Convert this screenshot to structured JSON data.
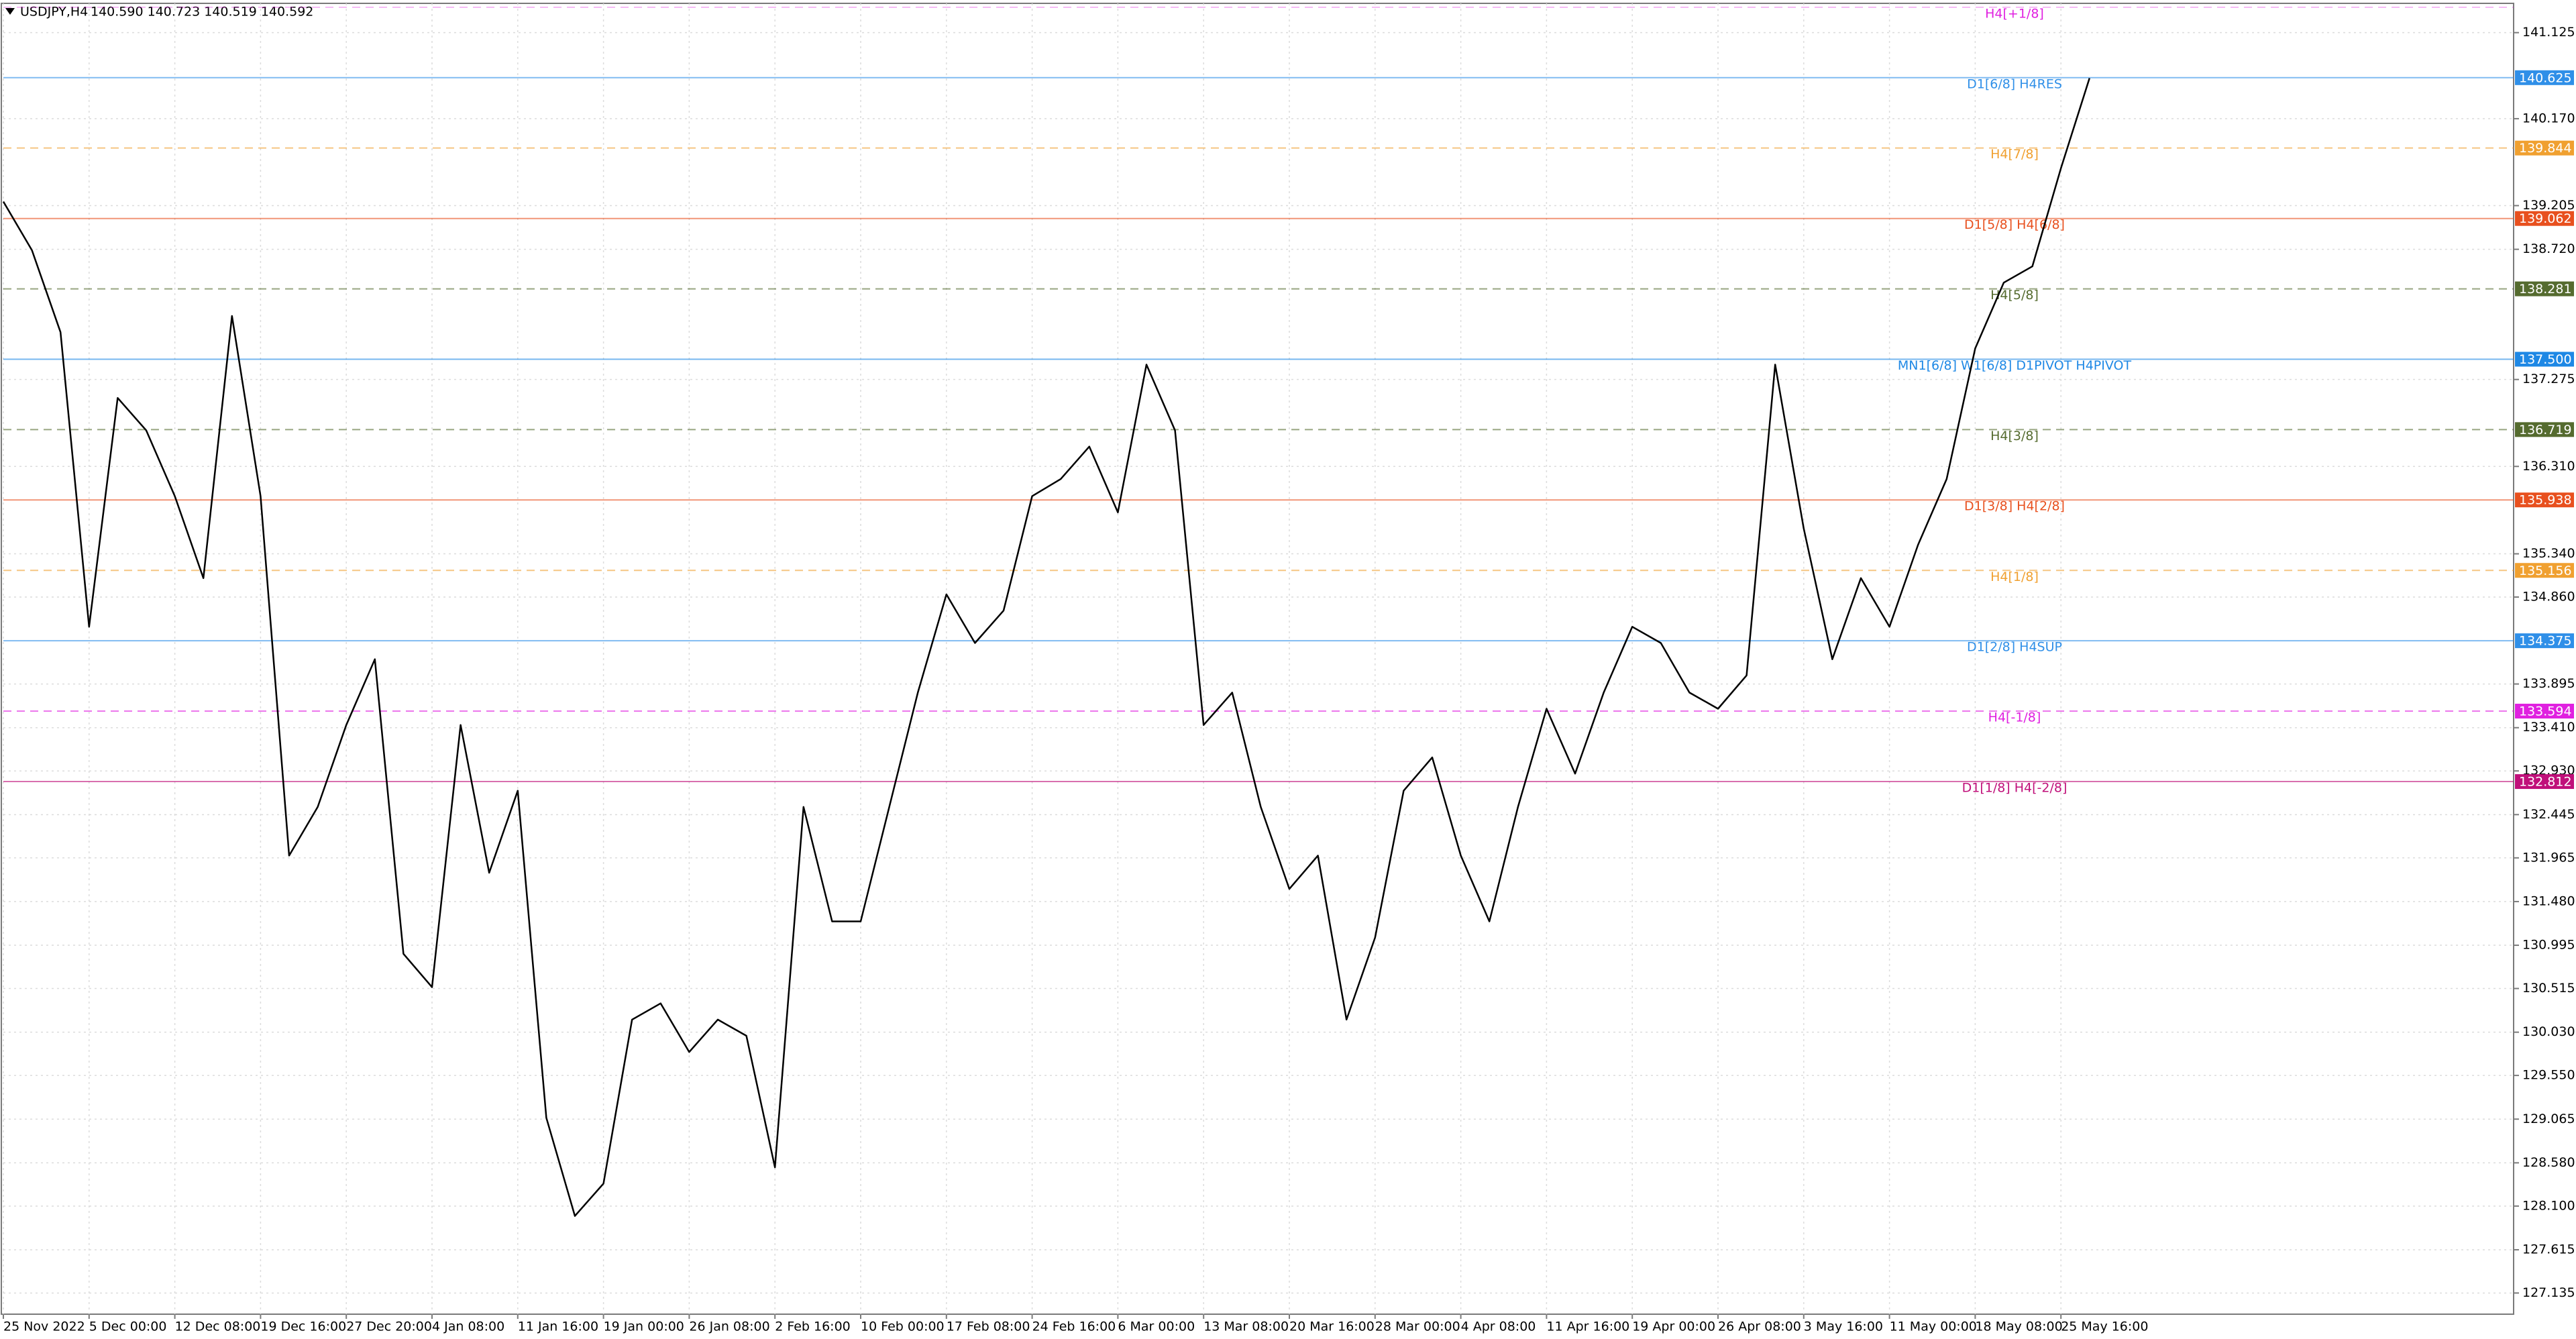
{
  "chart_data": {
    "type": "line",
    "title": "USDJPY,H4",
    "ohlc": "140.590 140.723 140.519 140.592",
    "color": "#000000",
    "grid": true,
    "ylim": [
      126.9,
      141.45
    ],
    "yticks": [
      141.125,
      {
        "value": 140.17,
        "label": "140.170"
      },
      139.205,
      {
        "value": 138.72,
        "label": "138.720"
      },
      137.275,
      {
        "value": 136.31,
        "label": "136.310"
      },
      {
        "value": 135.34,
        "label": "135.340"
      },
      {
        "value": 134.86,
        "label": "134.860"
      },
      133.895,
      {
        "value": 133.41,
        "label": "133.410"
      },
      {
        "value": 132.93,
        "label": "132.930"
      },
      132.445,
      131.965,
      {
        "value": 131.48,
        "label": "131.480"
      },
      130.995,
      130.515,
      {
        "value": 130.03,
        "label": "130.030"
      },
      {
        "value": 129.55,
        "label": "129.550"
      },
      129.065,
      {
        "value": 128.58,
        "label": "128.580"
      },
      {
        "value": 128.1,
        "label": "128.100"
      },
      127.615,
      127.135
    ],
    "categories": [
      "25 Nov 2022",
      null,
      null,
      "5 Dec 00:00",
      null,
      null,
      "12 Dec 08:00",
      null,
      null,
      "19 Dec 16:00",
      null,
      null,
      "27 Dec 20:00",
      null,
      null,
      "4 Jan 08:00",
      null,
      null,
      "11 Jan 16:00",
      null,
      null,
      "19 Jan 00:00",
      null,
      null,
      "26 Jan 08:00",
      null,
      null,
      "2 Feb 16:00",
      null,
      null,
      "10 Feb 00:00",
      null,
      null,
      "17 Feb 08:00",
      null,
      null,
      "24 Feb 16:00",
      null,
      null,
      "6 Mar 00:00",
      null,
      null,
      "13 Mar 08:00",
      null,
      null,
      "20 Mar 16:00",
      null,
      null,
      "28 Mar 00:00",
      null,
      null,
      "4 Apr 08:00",
      null,
      null,
      "11 Apr 16:00",
      null,
      null,
      "19 Apr 00:00",
      null,
      null,
      "26 Apr 08:00",
      null,
      null,
      "3 May 16:00",
      null,
      null,
      "11 May 00:00",
      null,
      null,
      "18 May 08:00",
      null,
      null,
      "25 May 16:00",
      null
    ],
    "values": [
      139.25,
      138.71,
      137.8,
      134.53,
      137.07,
      136.71,
      135.98,
      135.07,
      137.98,
      135.98,
      131.99,
      132.53,
      133.44,
      134.17,
      130.9,
      130.53,
      133.44,
      131.8,
      132.71,
      129.08,
      127.99,
      128.35,
      130.17,
      130.35,
      129.81,
      130.17,
      129.99,
      128.53,
      132.53,
      131.26,
      131.26,
      132.53,
      133.8,
      134.89,
      134.35,
      134.71,
      135.98,
      136.17,
      136.53,
      135.8,
      137.44,
      136.71,
      133.44,
      133.8,
      132.53,
      131.62,
      131.99,
      130.17,
      131.08,
      132.71,
      133.08,
      131.99,
      131.26,
      132.53,
      133.62,
      132.9,
      133.8,
      134.53,
      134.35,
      133.8,
      133.62,
      133.99,
      137.44,
      135.62,
      134.17,
      135.07,
      134.53,
      135.44,
      136.17,
      137.62,
      138.35,
      138.53,
      139.62,
      140.62
    ],
    "levels": [
      {
        "label": "H4[+1/8]",
        "value": 141.406,
        "color": "#e020e0",
        "dashed": true
      },
      {
        "label": "D1[6/8] H4RES",
        "value": 140.625,
        "value_label": "140.625",
        "color": "#2f8fe8",
        "dashed": false
      },
      {
        "label": "H4[7/8]",
        "value": 139.844,
        "value_label": "139.844",
        "color": "#f0a030",
        "dashed": true
      },
      {
        "label": "D1[5/8] H4[6/8]",
        "value": 139.062,
        "value_label": "139.062",
        "color": "#e8501e",
        "dashed": false
      },
      {
        "label": "H4[5/8]",
        "value": 138.281,
        "value_label": "138.281",
        "color": "#556b2f",
        "dashed": true
      },
      {
        "label": "MN1[6/8] W1[6/8] D1PIVOT H4PIVOT",
        "value": 137.5,
        "value_label": "137.500",
        "color": "#1e88e5",
        "dashed": false
      },
      {
        "label": "H4[3/8]",
        "value": 136.719,
        "value_label": "136.719",
        "color": "#556b2f",
        "dashed": true
      },
      {
        "label": "D1[3/8] H4[2/8]",
        "value": 135.938,
        "value_label": "135.938",
        "color": "#e8501e",
        "dashed": false
      },
      {
        "label": "H4[1/8]",
        "value": 135.156,
        "value_label": "135.156",
        "color": "#f0a030",
        "dashed": true
      },
      {
        "label": "D1[2/8] H4SUP",
        "value": 134.375,
        "value_label": "134.375",
        "color": "#2f8fe8",
        "dashed": false
      },
      {
        "label": "H4[-1/8]",
        "value": 133.594,
        "value_label": "133.594",
        "color": "#e020e0",
        "dashed": true
      },
      {
        "label": "D1[1/8] H4[-2/8]",
        "value": 132.812,
        "value_label": "132.812",
        "color": "#c0107a",
        "dashed": false
      }
    ]
  }
}
